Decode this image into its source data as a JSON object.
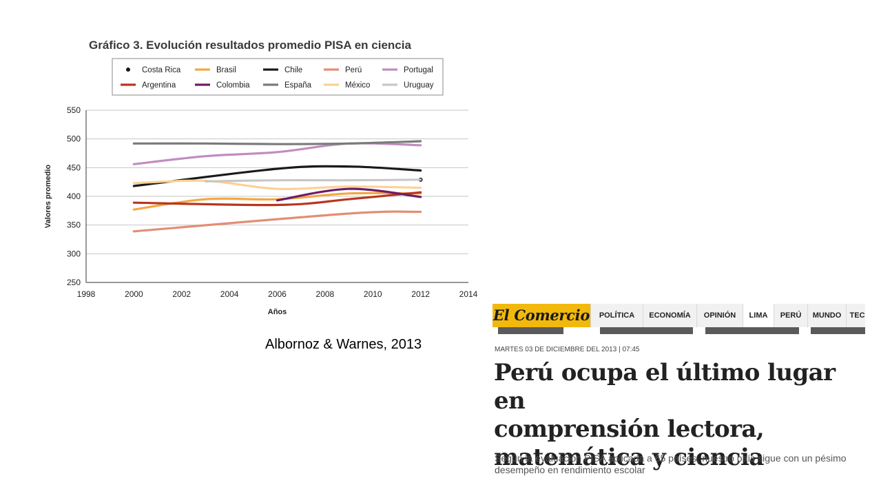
{
  "chart_data": {
    "type": "line",
    "title": "Gráfico 3. Evolución resultados promedio PISA en ciencia",
    "xlabel": "Años",
    "ylabel": "Valores promedio",
    "xlim": [
      1998,
      2014
    ],
    "ylim": [
      250,
      550
    ],
    "xticks": [
      1998,
      2000,
      2002,
      2004,
      2006,
      2008,
      2010,
      2012,
      2014
    ],
    "yticks": [
      250,
      300,
      350,
      400,
      450,
      500,
      550
    ],
    "grid": "horizontal",
    "legend_position": "top",
    "series": [
      {
        "name": "Costa Rica",
        "color": "#1a1a1a",
        "marker": "point",
        "x": [
          2012
        ],
        "y": [
          429
        ]
      },
      {
        "name": "Brasil",
        "color": "#f5a742",
        "x": [
          2000,
          2003,
          2006,
          2009,
          2012
        ],
        "y": [
          377,
          395,
          395,
          405,
          405
        ]
      },
      {
        "name": "Chile",
        "color": "#1a1a1a",
        "x": [
          2000,
          2006,
          2009,
          2012
        ],
        "y": [
          418,
          448,
          452,
          445
        ]
      },
      {
        "name": "Perú",
        "color": "#e28e74",
        "x": [
          2000,
          2009,
          2012
        ],
        "y": [
          339,
          370,
          373
        ]
      },
      {
        "name": "Portugal",
        "color": "#c18cc1",
        "x": [
          2000,
          2003,
          2006,
          2009,
          2012
        ],
        "y": [
          456,
          470,
          477,
          492,
          489
        ]
      },
      {
        "name": "Argentina",
        "color": "#b8361f",
        "x": [
          2000,
          2006,
          2009,
          2012
        ],
        "y": [
          389,
          385,
          395,
          407
        ]
      },
      {
        "name": "Colombia",
        "color": "#6c1d6a",
        "x": [
          2006,
          2009,
          2012
        ],
        "y": [
          393,
          413,
          399
        ]
      },
      {
        "name": "España",
        "color": "#7a7a7a",
        "x": [
          2000,
          2003,
          2006,
          2009,
          2012
        ],
        "y": [
          492,
          492,
          491,
          492,
          496
        ]
      },
      {
        "name": "México",
        "color": "#fcd195",
        "x": [
          2000,
          2003,
          2006,
          2009,
          2012
        ],
        "y": [
          423,
          427,
          413,
          417,
          415
        ]
      },
      {
        "name": "Uruguay",
        "color": "#c7c7c7",
        "x": [
          2003,
          2006,
          2009,
          2012
        ],
        "y": [
          426,
          428,
          428,
          429
        ]
      }
    ]
  },
  "citation": "Albornoz & Warnes, 2013",
  "news": {
    "logo": "El Comercio",
    "nav": [
      "POLÍTICA",
      "ECONOMÍA",
      "OPINIÓN",
      "LIMA",
      "PERÚ",
      "MUNDO",
      "TECN"
    ],
    "active_nav": "LIMA",
    "dateline": "MARTES 03 DE DICIEMBRE DEL 2013 | 07:45",
    "headline_lines": [
      "Perú ocupa el último lugar en",
      "comprensión lectora,",
      "matemática y ciencia"
    ],
    "subhead": "Según la evaluación PISA aplicada a 65 países, nuestro país sigue con un pésimo desempeño en rendimiento escolar",
    "colors": {
      "logo_bg": "#f2b90c",
      "nav_bg": "#f1f1f1"
    }
  }
}
